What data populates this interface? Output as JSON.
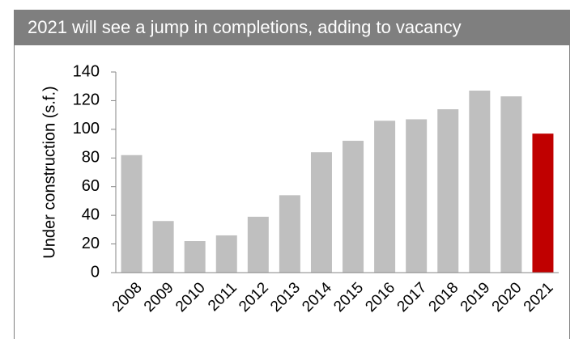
{
  "chart_data": {
    "type": "bar",
    "title": "2021 will see a jump in completions, adding to vacancy",
    "y_label": "Under construction (s.f.)",
    "categories": [
      "2008",
      "2009",
      "2010",
      "2011",
      "2012",
      "2013",
      "2014",
      "2015",
      "2016",
      "2017",
      "2018",
      "2019",
      "2020",
      "2021"
    ],
    "values": [
      82,
      36,
      22,
      26,
      39,
      54,
      84,
      92,
      106,
      107,
      114,
      127,
      123,
      97
    ],
    "colors": [
      "#bfbfbf",
      "#bfbfbf",
      "#bfbfbf",
      "#bfbfbf",
      "#bfbfbf",
      "#bfbfbf",
      "#bfbfbf",
      "#bfbfbf",
      "#bfbfbf",
      "#bfbfbf",
      "#bfbfbf",
      "#bfbfbf",
      "#bfbfbf",
      "#c00000"
    ],
    "ylim": [
      0,
      140
    ],
    "yticks": [
      0,
      20,
      40,
      60,
      80,
      100,
      120,
      140
    ],
    "grid": false
  }
}
